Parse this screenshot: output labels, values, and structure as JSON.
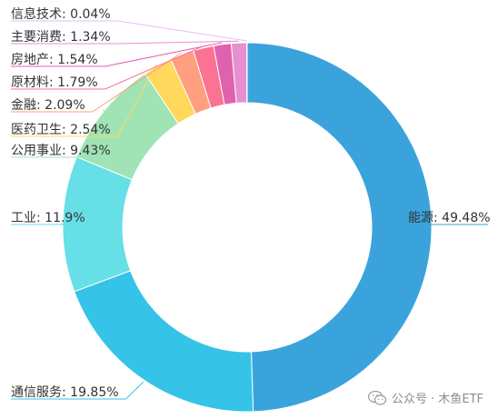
{
  "chart_data": {
    "type": "pie",
    "variant": "donut",
    "slices": [
      {
        "label": "能源",
        "value": 49.48,
        "display": "能源: 49.48%",
        "color": "#3ba3dc"
      },
      {
        "label": "通信服务",
        "value": 19.85,
        "display": "通信服务: 19.85%",
        "color": "#35c3e8"
      },
      {
        "label": "工业",
        "value": 11.9,
        "display": "工业: 11.9%",
        "color": "#67dfe6"
      },
      {
        "label": "公用事业",
        "value": 9.43,
        "display": "公用事业: 9.43%",
        "color": "#a0e4b6"
      },
      {
        "label": "医药卫生",
        "value": 2.54,
        "display": "医药卫生: 2.54%",
        "color": "#ffd85c"
      },
      {
        "label": "金融",
        "value": 2.09,
        "display": "金融: 2.09%",
        "color": "#ff9f7f"
      },
      {
        "label": "原材料",
        "value": 1.79,
        "display": "原材料: 1.79%",
        "color": "#fb7293"
      },
      {
        "label": "房地产",
        "value": 1.54,
        "display": "房地产: 1.54%",
        "color": "#e062ae"
      },
      {
        "label": "主要消费",
        "value": 1.34,
        "display": "主要消费: 1.34%",
        "color": "#e690d1"
      },
      {
        "label": "信息技术",
        "value": 0.04,
        "display": "信息技术: 0.04%",
        "color": "#e7bcf3"
      }
    ],
    "legend": "none"
  },
  "watermark": {
    "text": "公众号 · 木鱼ETF",
    "icon": "wechat-icon"
  }
}
